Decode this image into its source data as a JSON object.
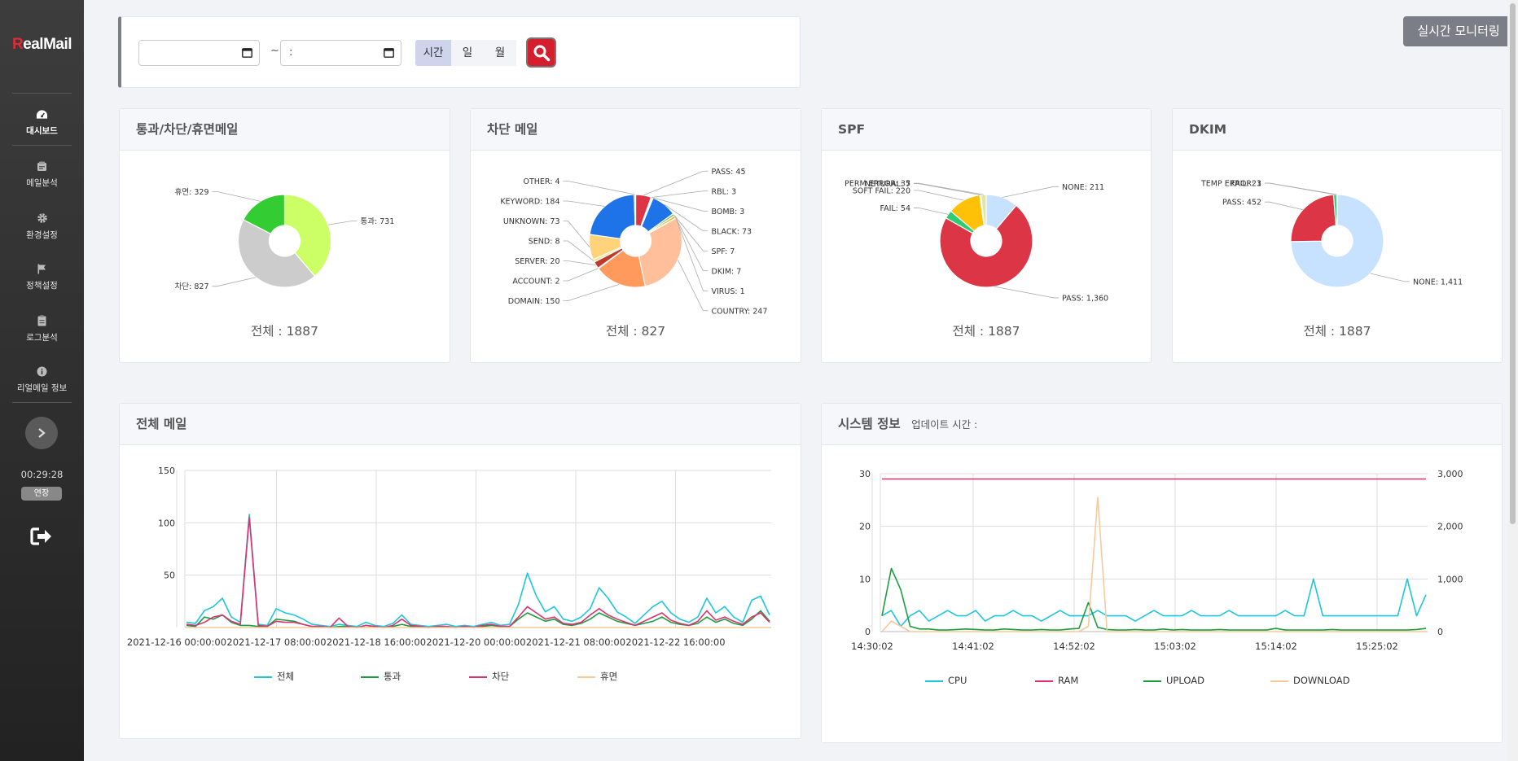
{
  "brand": {
    "logo_r": "R",
    "logo_rest": "ealMail"
  },
  "sidebar": {
    "items": [
      {
        "label": "대시보드",
        "icon": "dashboard-icon"
      },
      {
        "label": "메일분석",
        "icon": "mail-analysis-icon"
      },
      {
        "label": "환경설정",
        "icon": "gear-icon"
      },
      {
        "label": "정책설정",
        "icon": "flag-icon"
      },
      {
        "label": "로그분석",
        "icon": "clipboard-icon"
      },
      {
        "label": "리얼메일 정보",
        "icon": "info-icon"
      }
    ],
    "timer": "00:29:28",
    "extend_label": "연장"
  },
  "filter": {
    "start_value": "",
    "end_value": ":",
    "tilde": "~",
    "periods": [
      "시간",
      "일",
      "월"
    ],
    "selected_period": "시간"
  },
  "monitor_button": "실시간 모니터링",
  "colors": {
    "accent": "#d4202e",
    "sidebar": "#2b2b2b",
    "selected_period": "#cdd4ec"
  },
  "cards": {
    "pass_block": {
      "title": "통과/차단/휴면메일",
      "total_label": "전체 : 1887"
    },
    "blocked": {
      "title": "차단 메일",
      "total_label": "전체 : 827"
    },
    "spf": {
      "title": "SPF",
      "total_label": "전체 : 1887"
    },
    "dkim": {
      "title": "DKIM",
      "total_label": "전체 : 1887"
    },
    "all_mail": {
      "title": "전체 메일"
    },
    "system": {
      "title": "시스템 정보",
      "update_label": "업데이트 시간 :"
    }
  },
  "chart_data": [
    {
      "type": "pie",
      "id": "pass_block",
      "title": "통과/차단/휴면메일",
      "labels": [
        "통과",
        "차단",
        "휴면"
      ],
      "values": [
        731,
        827,
        329
      ],
      "colors": [
        "#ccff66",
        "#cccccc",
        "#33cc33"
      ]
    },
    {
      "type": "pie",
      "id": "blocked",
      "title": "차단 메일",
      "labels": [
        "PASS",
        "RBL",
        "BOMB",
        "BLACK",
        "SPF",
        "DKIM",
        "VIRUS",
        "COUNTRY",
        "DOMAIN",
        "ACCOUNT",
        "SERVER",
        "SEND",
        "UNKNOWN",
        "KEYWORD",
        "OTHER"
      ],
      "values": [
        45,
        3,
        3,
        73,
        7,
        7,
        1,
        247,
        150,
        2,
        20,
        8,
        73,
        184,
        4
      ],
      "colors": [
        "#dc3545",
        "#c8102e",
        "#9b59b6",
        "#1e73e8",
        "#7cc576",
        "#e6b422",
        "#5aa9e6",
        "#ffbf9b",
        "#ff9a5c",
        "#f07f5e",
        "#c0392b",
        "#ffe08a",
        "#ffd37a",
        "#1e73e8",
        "#8fbc8f"
      ]
    },
    {
      "type": "pie",
      "id": "spf",
      "title": "SPF",
      "labels": [
        "NONE",
        "PASS",
        "FAIL",
        "SOFT FAIL",
        "NETURAL",
        "PERM ERROR"
      ],
      "values": [
        211,
        1360,
        54,
        220,
        7,
        35
      ],
      "colors": [
        "#c6e2ff",
        "#dc3545",
        "#2ecc71",
        "#ffc107",
        "#ff9800",
        "#e5e5a0"
      ]
    },
    {
      "type": "pie",
      "id": "dkim",
      "title": "DKIM",
      "labels": [
        "NONE",
        "PASS",
        "FAIL",
        "TEMP ERROR"
      ],
      "values": [
        1411,
        452,
        21,
        3
      ],
      "colors": [
        "#c6e2ff",
        "#dc3545",
        "#2ecc71",
        "#e6b422"
      ]
    },
    {
      "type": "line",
      "id": "all_mail",
      "title": "전체 메일",
      "x_tick_labels": [
        "2021-12-16 00:00:00",
        "2021-12-17 08:00:00",
        "2021-12-18 16:00:00",
        "2021-12-20 00:00:00",
        "2021-12-21 08:00:00",
        "2021-12-22 16:00:00"
      ],
      "y_ticks": [
        50,
        100,
        150
      ],
      "ylim": [
        0,
        150
      ],
      "series": [
        {
          "name": "전체",
          "color": "#1dc5dd",
          "values": [
            5,
            4,
            16,
            20,
            28,
            10,
            5,
            108,
            3,
            2,
            18,
            14,
            12,
            8,
            3,
            2,
            1,
            3,
            2,
            1,
            5,
            2,
            1,
            4,
            12,
            3,
            2,
            1,
            2,
            3,
            1,
            2,
            1,
            3,
            5,
            2,
            3,
            22,
            52,
            30,
            15,
            20,
            8,
            6,
            10,
            18,
            38,
            28,
            15,
            10,
            4,
            12,
            20,
            25,
            14,
            8,
            5,
            10,
            28,
            14,
            20,
            10,
            5,
            26,
            30,
            12
          ]
        },
        {
          "name": "통과",
          "color": "#1a9e3e",
          "values": [
            2,
            1,
            10,
            8,
            12,
            5,
            2,
            2,
            1,
            1,
            8,
            7,
            6,
            3,
            1,
            1,
            0,
            1,
            1,
            0,
            2,
            1,
            0,
            1,
            3,
            1,
            1,
            0,
            1,
            1,
            0,
            1,
            0,
            1,
            2,
            1,
            1,
            8,
            14,
            10,
            6,
            8,
            3,
            2,
            4,
            8,
            14,
            10,
            6,
            4,
            2,
            4,
            6,
            10,
            5,
            3,
            2,
            4,
            10,
            5,
            8,
            4,
            2,
            8,
            16,
            6
          ]
        },
        {
          "name": "차단",
          "color": "#e0306e",
          "values": [
            3,
            2,
            5,
            10,
            12,
            6,
            3,
            105,
            2,
            1,
            6,
            5,
            5,
            3,
            1,
            1,
            0,
            9,
            1,
            0,
            2,
            1,
            0,
            2,
            8,
            2,
            1,
            0,
            1,
            1,
            0,
            1,
            0,
            2,
            3,
            1,
            1,
            10,
            20,
            14,
            8,
            10,
            4,
            3,
            5,
            12,
            18,
            12,
            8,
            5,
            2,
            6,
            10,
            14,
            7,
            4,
            2,
            6,
            16,
            7,
            10,
            6,
            3,
            10,
            14,
            5
          ]
        },
        {
          "name": "휴면",
          "color": "#f7c99b",
          "values": [
            0,
            0,
            0,
            0,
            0,
            0,
            0,
            0,
            0,
            0,
            0,
            0,
            0,
            0,
            0,
            0,
            0,
            0,
            0,
            0,
            0,
            0,
            0,
            0,
            0,
            0,
            0,
            0,
            0,
            0,
            0,
            0,
            0,
            0,
            0,
            0,
            0,
            0,
            0,
            0,
            0,
            0,
            0,
            0,
            0,
            0,
            0,
            0,
            0,
            0,
            0,
            0,
            0,
            0,
            0,
            0,
            0,
            0,
            0,
            0,
            0,
            0,
            0,
            0,
            0,
            0
          ]
        }
      ]
    },
    {
      "type": "line",
      "id": "system",
      "title": "시스템 정보",
      "x_tick_labels": [
        "14:30:02",
        "14:41:02",
        "14:52:02",
        "15:03:02",
        "15:14:02",
        "15:25:02"
      ],
      "y_ticks_left": [
        0,
        10,
        20,
        30
      ],
      "ylim_left": [
        0,
        30
      ],
      "y_ticks_right": [
        "0",
        "1,000",
        "2,000",
        "3,000"
      ],
      "ylim_right": [
        0,
        3000
      ],
      "series": [
        {
          "name": "CPU",
          "axis": "left",
          "color": "#1dc5dd",
          "values": [
            3,
            4,
            1,
            3,
            4,
            2,
            3,
            4,
            3,
            3,
            4,
            2,
            3,
            3,
            4,
            3,
            3,
            2,
            3,
            4,
            3,
            3,
            3,
            4,
            3,
            3,
            3,
            2,
            3,
            4,
            3,
            3,
            3,
            4,
            3,
            3,
            3,
            4,
            3,
            3,
            3,
            3,
            3,
            4,
            3,
            3,
            10,
            3,
            3,
            3,
            3,
            3,
            3,
            3,
            3,
            3,
            10,
            3,
            7
          ]
        },
        {
          "name": "RAM",
          "axis": "left",
          "color": "#e0306e",
          "values": [
            29,
            29,
            29,
            29,
            29,
            29,
            29,
            29,
            29,
            29,
            29,
            29,
            29,
            29,
            29,
            29,
            29,
            29,
            29,
            29,
            29,
            29,
            29,
            29,
            29,
            29,
            29,
            29,
            29,
            29,
            29,
            29,
            29,
            29,
            29,
            29,
            29,
            29,
            29,
            29,
            29,
            29,
            29,
            29,
            29,
            29,
            29,
            29,
            29,
            29,
            29,
            29,
            29,
            29,
            29,
            29,
            29,
            29,
            29
          ]
        },
        {
          "name": "UPLOAD",
          "axis": "right",
          "color": "#1a9e3e",
          "values": [
            300,
            1200,
            800,
            100,
            50,
            50,
            30,
            30,
            40,
            50,
            40,
            30,
            30,
            50,
            40,
            30,
            30,
            40,
            30,
            30,
            50,
            60,
            550,
            80,
            40,
            30,
            30,
            40,
            30,
            30,
            50,
            30,
            40,
            30,
            30,
            30,
            40,
            30,
            30,
            30,
            30,
            30,
            60,
            30,
            30,
            30,
            30,
            30,
            40,
            30,
            30,
            30,
            30,
            30,
            30,
            30,
            30,
            40,
            60
          ]
        },
        {
          "name": "DOWNLOAD",
          "axis": "right",
          "color": "#f7c99b",
          "values": [
            0,
            200,
            100,
            0,
            0,
            0,
            0,
            0,
            0,
            0,
            0,
            0,
            0,
            0,
            0,
            0,
            0,
            0,
            0,
            0,
            0,
            0,
            100,
            2550,
            0,
            0,
            0,
            0,
            0,
            0,
            0,
            0,
            0,
            0,
            0,
            0,
            0,
            0,
            0,
            0,
            0,
            0,
            0,
            0,
            0,
            0,
            0,
            0,
            0,
            0,
            0,
            0,
            0,
            0,
            0,
            0,
            0,
            0,
            0
          ]
        }
      ]
    }
  ]
}
